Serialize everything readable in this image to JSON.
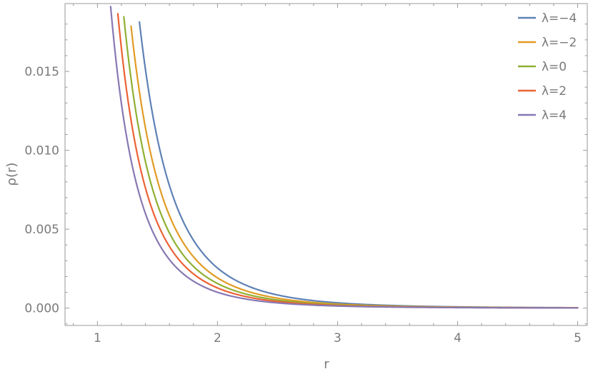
{
  "chart_data": {
    "type": "line",
    "title": "",
    "xlabel": "r",
    "ylabel": "ρ(r)",
    "xlim": [
      0.73,
      5.08
    ],
    "ylim": [
      -0.0011,
      0.0193
    ],
    "x_ticks": [
      1,
      2,
      3,
      4,
      5
    ],
    "x_tick_labels": [
      "1",
      "2",
      "3",
      "4",
      "5"
    ],
    "y_ticks": [
      0.0,
      0.005,
      0.01,
      0.015
    ],
    "y_tick_labels": [
      "0.000",
      "0.005",
      "0.010",
      "0.015"
    ],
    "grid": false,
    "legend_position": "top-right",
    "model": "rho = a * r^(-5)",
    "series": [
      {
        "name": "λ=−4",
        "color": "#5e81b5",
        "a": 0.0813,
        "x_start": 1.35,
        "x_end": 5.0
      },
      {
        "name": "λ=−2",
        "color": "#e19c24",
        "a": 0.0614,
        "x_start": 1.28,
        "x_end": 5.0
      },
      {
        "name": "λ=0",
        "color": "#8fb032",
        "a": 0.0499,
        "x_start": 1.22,
        "x_end": 5.0
      },
      {
        "name": "λ=2",
        "color": "#eb6235",
        "a": 0.0409,
        "x_start": 1.17,
        "x_end": 5.0
      },
      {
        "name": "λ=4",
        "color": "#8778b3",
        "a": 0.0322,
        "x_start": 1.11,
        "x_end": 5.0
      }
    ]
  }
}
